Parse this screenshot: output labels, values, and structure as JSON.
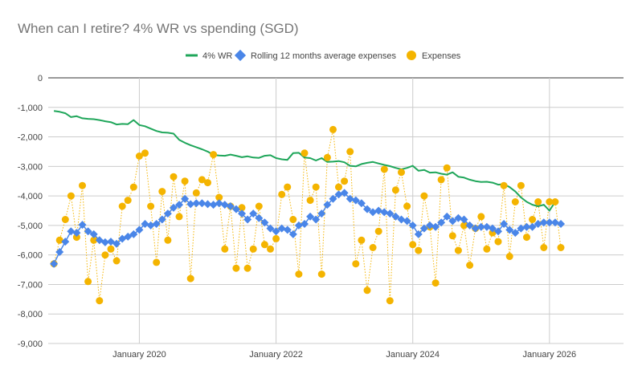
{
  "chart_data": {
    "type": "line",
    "title": "When can I retire? 4% WR vs spending (SGD)",
    "xlabel": "",
    "ylabel": "",
    "ylim": [
      -9000,
      0
    ],
    "yticks": [
      0,
      -1000,
      -2000,
      -3000,
      -4000,
      -5000,
      -6000,
      -7000,
      -8000,
      -9000
    ],
    "ytick_labels": [
      "0",
      "-1,000",
      "-2,000",
      "-3,000",
      "-4,000",
      "-5,000",
      "-6,000",
      "-7,000",
      "-8,000",
      "-9,000"
    ],
    "xlim": [
      "2018-09",
      "2027-02"
    ],
    "xticks": [
      "2020-01",
      "2022-01",
      "2024-01",
      "2026-01"
    ],
    "xtick_labels": [
      "January 2020",
      "January 2022",
      "January 2024",
      "January 2026"
    ],
    "grid": true,
    "legend_position": "top",
    "series": [
      {
        "name": "4% WR",
        "kind": "line",
        "color": "#1fa65a",
        "x": [
          "2018-10",
          "2018-11",
          "2018-12",
          "2019-01",
          "2019-02",
          "2019-03",
          "2019-04",
          "2019-05",
          "2019-06",
          "2019-07",
          "2019-08",
          "2019-09",
          "2019-10",
          "2019-11",
          "2019-12",
          "2020-01",
          "2020-02",
          "2020-03",
          "2020-04",
          "2020-05",
          "2020-06",
          "2020-07",
          "2020-08",
          "2020-09",
          "2020-10",
          "2020-11",
          "2020-12",
          "2021-01",
          "2021-02",
          "2021-03",
          "2021-04",
          "2021-05",
          "2021-06",
          "2021-07",
          "2021-08",
          "2021-09",
          "2021-10",
          "2021-11",
          "2021-12",
          "2022-01",
          "2022-02",
          "2022-03",
          "2022-04",
          "2022-05",
          "2022-06",
          "2022-07",
          "2022-08",
          "2022-09",
          "2022-10",
          "2022-11",
          "2022-12",
          "2023-01",
          "2023-02",
          "2023-03",
          "2023-04",
          "2023-05",
          "2023-06",
          "2023-07",
          "2023-08",
          "2023-09",
          "2023-10",
          "2023-11",
          "2023-12",
          "2024-01",
          "2024-02",
          "2024-03",
          "2024-04",
          "2024-05",
          "2024-06",
          "2024-07",
          "2024-08",
          "2024-09",
          "2024-10",
          "2024-11",
          "2024-12",
          "2025-01",
          "2025-02",
          "2025-03",
          "2025-04",
          "2025-05",
          "2025-06",
          "2025-07",
          "2025-08",
          "2025-09",
          "2025-10",
          "2025-11",
          "2025-12",
          "2026-01",
          "2026-02"
        ],
        "values": [
          -1120,
          -1150,
          -1200,
          -1330,
          -1300,
          -1370,
          -1390,
          -1400,
          -1430,
          -1470,
          -1500,
          -1580,
          -1560,
          -1570,
          -1430,
          -1600,
          -1640,
          -1720,
          -1800,
          -1850,
          -1860,
          -1890,
          -2100,
          -2200,
          -2280,
          -2350,
          -2420,
          -2500,
          -2610,
          -2630,
          -2640,
          -2600,
          -2640,
          -2690,
          -2660,
          -2700,
          -2710,
          -2640,
          -2620,
          -2720,
          -2760,
          -2780,
          -2550,
          -2540,
          -2700,
          -2720,
          -2800,
          -2720,
          -2850,
          -2840,
          -2820,
          -2860,
          -2980,
          -3000,
          -2920,
          -2880,
          -2850,
          -2900,
          -2950,
          -2990,
          -3050,
          -3100,
          -3050,
          -2980,
          -3150,
          -3120,
          -3210,
          -3200,
          -3250,
          -3280,
          -3200,
          -3350,
          -3380,
          -3450,
          -3500,
          -3530,
          -3520,
          -3550,
          -3620,
          -3600,
          -3700,
          -3850,
          -4050,
          -4200,
          -4300,
          -4350,
          -4300,
          -4500,
          -4200
        ]
      },
      {
        "name": "Rolling 12 months average expenses",
        "kind": "line-markers",
        "color": "#4a86e8",
        "x": [
          "2018-10",
          "2018-11",
          "2018-12",
          "2019-01",
          "2019-02",
          "2019-03",
          "2019-04",
          "2019-05",
          "2019-06",
          "2019-07",
          "2019-08",
          "2019-09",
          "2019-10",
          "2019-11",
          "2019-12",
          "2020-01",
          "2020-02",
          "2020-03",
          "2020-04",
          "2020-05",
          "2020-06",
          "2020-07",
          "2020-08",
          "2020-09",
          "2020-10",
          "2020-11",
          "2020-12",
          "2021-01",
          "2021-02",
          "2021-03",
          "2021-04",
          "2021-05",
          "2021-06",
          "2021-07",
          "2021-08",
          "2021-09",
          "2021-10",
          "2021-11",
          "2021-12",
          "2022-01",
          "2022-02",
          "2022-03",
          "2022-04",
          "2022-05",
          "2022-06",
          "2022-07",
          "2022-08",
          "2022-09",
          "2022-10",
          "2022-11",
          "2022-12",
          "2023-01",
          "2023-02",
          "2023-03",
          "2023-04",
          "2023-05",
          "2023-06",
          "2023-07",
          "2023-08",
          "2023-09",
          "2023-10",
          "2023-11",
          "2023-12",
          "2024-01",
          "2024-02",
          "2024-03",
          "2024-04",
          "2024-05",
          "2024-06",
          "2024-07",
          "2024-08",
          "2024-09",
          "2024-10",
          "2024-11",
          "2024-12",
          "2025-01",
          "2025-02",
          "2025-03",
          "2025-04",
          "2025-05",
          "2025-06",
          "2025-07",
          "2025-08",
          "2025-09",
          "2025-10",
          "2025-11",
          "2025-12",
          "2026-01",
          "2026-02",
          "2026-03"
        ],
        "values": [
          -6300,
          -5900,
          -5550,
          -5200,
          -5250,
          -4980,
          -5200,
          -5300,
          -5500,
          -5570,
          -5550,
          -5620,
          -5450,
          -5380,
          -5300,
          -5150,
          -4950,
          -5000,
          -4950,
          -4800,
          -4600,
          -4400,
          -4300,
          -4100,
          -4280,
          -4250,
          -4250,
          -4280,
          -4300,
          -4250,
          -4300,
          -4350,
          -4450,
          -4600,
          -4800,
          -4600,
          -4750,
          -4900,
          -5100,
          -5200,
          -5100,
          -5150,
          -5300,
          -5000,
          -4950,
          -4700,
          -4800,
          -4600,
          -4300,
          -4100,
          -3950,
          -3900,
          -4100,
          -4150,
          -4250,
          -4450,
          -4550,
          -4500,
          -4550,
          -4600,
          -4700,
          -4800,
          -4850,
          -5000,
          -5300,
          -5100,
          -5000,
          -5050,
          -4900,
          -4700,
          -4850,
          -4750,
          -4800,
          -5000,
          -5100,
          -5050,
          -5050,
          -5100,
          -5200,
          -4950,
          -5150,
          -5250,
          -5100,
          -5050,
          -5050,
          -4950,
          -4900,
          -4900,
          -4900,
          -4950
        ]
      },
      {
        "name": "Expenses",
        "kind": "dotted-markers",
        "color": "#f4b400",
        "x": [
          "2018-10",
          "2018-11",
          "2018-12",
          "2019-01",
          "2019-02",
          "2019-03",
          "2019-04",
          "2019-05",
          "2019-06",
          "2019-07",
          "2019-08",
          "2019-09",
          "2019-10",
          "2019-11",
          "2019-12",
          "2020-01",
          "2020-02",
          "2020-03",
          "2020-04",
          "2020-05",
          "2020-06",
          "2020-07",
          "2020-08",
          "2020-09",
          "2020-10",
          "2020-11",
          "2020-12",
          "2021-01",
          "2021-02",
          "2021-03",
          "2021-04",
          "2021-05",
          "2021-06",
          "2021-07",
          "2021-08",
          "2021-09",
          "2021-10",
          "2021-11",
          "2021-12",
          "2022-01",
          "2022-02",
          "2022-03",
          "2022-04",
          "2022-05",
          "2022-06",
          "2022-07",
          "2022-08",
          "2022-09",
          "2022-10",
          "2022-11",
          "2022-12",
          "2023-01",
          "2023-02",
          "2023-03",
          "2023-04",
          "2023-05",
          "2023-06",
          "2023-07",
          "2023-08",
          "2023-09",
          "2023-10",
          "2023-11",
          "2023-12",
          "2024-01",
          "2024-02",
          "2024-03",
          "2024-04",
          "2024-05",
          "2024-06",
          "2024-07",
          "2024-08",
          "2024-09",
          "2024-10",
          "2024-11",
          "2024-12",
          "2025-01",
          "2025-02",
          "2025-03",
          "2025-04",
          "2025-05",
          "2025-06",
          "2025-07",
          "2025-08",
          "2025-09",
          "2025-10",
          "2025-11",
          "2025-12",
          "2026-01",
          "2026-02",
          "2026-03"
        ],
        "values": [
          -6300,
          -5500,
          -4800,
          -4000,
          -5400,
          -3650,
          -6900,
          -5500,
          -7550,
          -6000,
          -5800,
          -6200,
          -4350,
          -4150,
          -3700,
          -2650,
          -2550,
          -4350,
          -6250,
          -3850,
          -5500,
          -3350,
          -4700,
          -3500,
          -6800,
          -3900,
          -3450,
          -3550,
          -2600,
          -4050,
          -5800,
          -4350,
          -6450,
          -4400,
          -6450,
          -5800,
          -4350,
          -5650,
          -5800,
          -5450,
          -3950,
          -3700,
          -4800,
          -6650,
          -2550,
          -4150,
          -3700,
          -6650,
          -2700,
          -1750,
          -3700,
          -3500,
          -2500,
          -6300,
          -5500,
          -7200,
          -5750,
          -5200,
          -3100,
          -7550,
          -3800,
          -3200,
          -4350,
          -5650,
          -5850,
          -4000,
          -5050,
          -6950,
          -3450,
          -3050,
          -5350,
          -5850,
          -5000,
          -6350,
          -5100,
          -4700,
          -5800,
          -5250,
          -5550,
          -3650,
          -6050,
          -4200,
          -3650,
          -5400,
          -4800,
          -4200,
          -5750,
          -4200,
          -4200,
          -5750
        ]
      }
    ]
  }
}
